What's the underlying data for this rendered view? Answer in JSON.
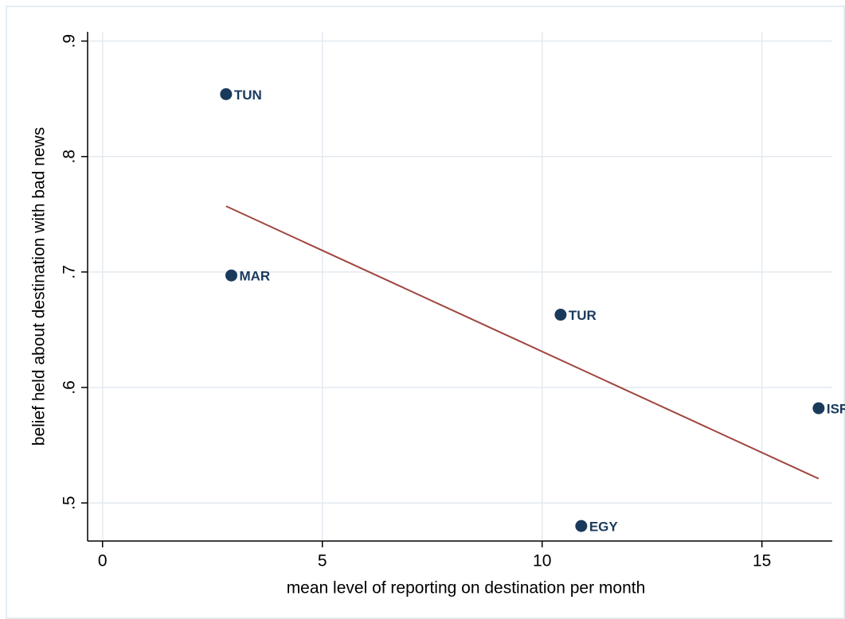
{
  "chart_data": {
    "type": "scatter",
    "xlabel": "mean level of reporting on destination per month",
    "ylabel": "belief held about destination with bad news",
    "labels": [
      "TUN",
      "MAR",
      "TUR",
      "ISR",
      "EGY"
    ],
    "x": [
      2.81,
      2.93,
      10.42,
      16.29,
      10.89
    ],
    "values": [
      0.854,
      0.697,
      0.663,
      0.582,
      0.48
    ],
    "color": "#1a3a5c",
    "fit": {
      "x": [
        2.81,
        16.29
      ],
      "values": [
        0.757,
        0.521
      ],
      "color": "#a0453f"
    },
    "xlim": [
      -0.34,
      16.6
    ],
    "ylim": [
      0.467,
      0.908
    ],
    "xticks": [
      0,
      5,
      10,
      15
    ],
    "yticks": [
      {
        "value": 0.5,
        "label": ".5"
      },
      {
        "value": 0.6,
        "label": ".6"
      },
      {
        "value": 0.7,
        "label": ".7"
      },
      {
        "value": 0.8,
        "label": ".8"
      },
      {
        "value": 0.9,
        "label": ".9"
      }
    ],
    "grid": true
  }
}
